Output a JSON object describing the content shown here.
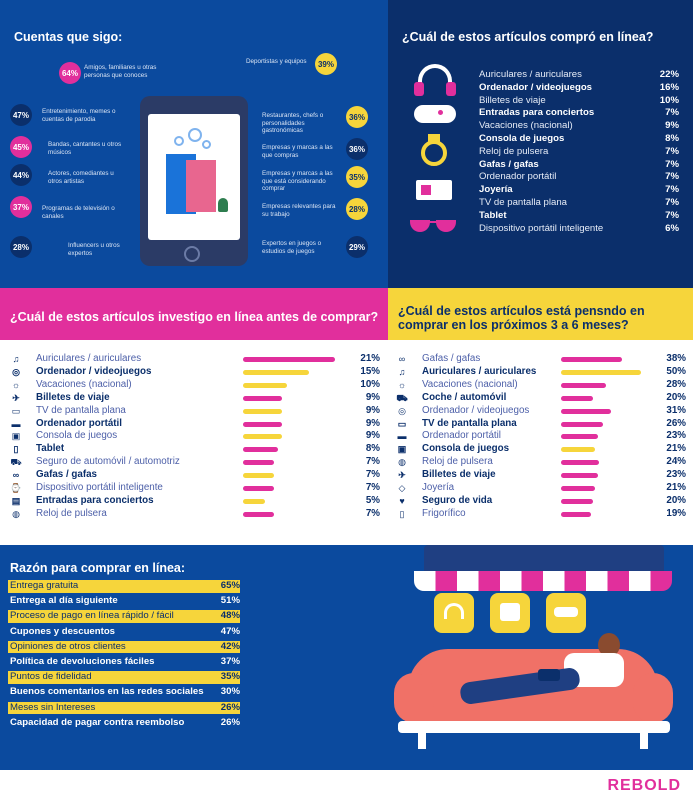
{
  "follow": {
    "title": "Cuentas que sigo:",
    "items": [
      {
        "pct": "64%",
        "label": "Amigos, familiares u otras personas que conoces"
      },
      {
        "pct": "39%",
        "label": "Deportistas y equipos"
      },
      {
        "pct": "47%",
        "label": "Entretenimiento, memes o cuentas de parodia"
      },
      {
        "pct": "36%",
        "label": "Restaurantes, chefs o personalidades gastronómicas"
      },
      {
        "pct": "45%",
        "label": "Bandas, cantantes u otros músicos"
      },
      {
        "pct": "36%",
        "label": "Empresas y marcas a las que compras"
      },
      {
        "pct": "44%",
        "label": "Actores, comediantes u otros artistas"
      },
      {
        "pct": "35%",
        "label": "Empresas y marcas a las que está considerando comprar"
      },
      {
        "pct": "37%",
        "label": "Programas de televisión o canales"
      },
      {
        "pct": "28%",
        "label": "Empresas relevantes para su trabajo"
      },
      {
        "pct": "28%",
        "label": "Influencers u otros expertos"
      },
      {
        "pct": "29%",
        "label": "Expertos en juegos o estudios de juegos"
      }
    ]
  },
  "bought": {
    "title": "¿Cuál de estos artículos compró en línea?",
    "items": [
      {
        "label": "Auriculares / auriculares",
        "pct": "22%",
        "bold": false
      },
      {
        "label": "Ordenador / videojuegos",
        "pct": "16%",
        "bold": true
      },
      {
        "label": "Billetes de viaje",
        "pct": "10%",
        "bold": false
      },
      {
        "label": "Entradas para conciertos",
        "pct": "7%",
        "bold": true
      },
      {
        "label": "Vacaciones (nacional)",
        "pct": "9%",
        "bold": false
      },
      {
        "label": "Consola de juegos",
        "pct": "8%",
        "bold": true
      },
      {
        "label": "Reloj de pulsera",
        "pct": "7%",
        "bold": false
      },
      {
        "label": "Gafas / gafas",
        "pct": "7%",
        "bold": true
      },
      {
        "label": "Ordenador portátil",
        "pct": "7%",
        "bold": false
      },
      {
        "label": "Joyería",
        "pct": "7%",
        "bold": true
      },
      {
        "label": "TV de pantalla plana",
        "pct": "7%",
        "bold": false
      },
      {
        "label": "Tablet",
        "pct": "7%",
        "bold": true
      },
      {
        "label": "Dispositivo portátil inteligente",
        "pct": "6%",
        "bold": false
      }
    ]
  },
  "research": {
    "title": "¿Cuál de estos artículos investigo en línea antes de comprar?",
    "items": [
      {
        "label": "Auriculares / auriculares",
        "pct": "21%",
        "value": 21,
        "bold": false,
        "color": "#e12f9c",
        "icon": "headphones-icon",
        "glyph": "♫"
      },
      {
        "label": "Ordenador / videojuegos",
        "pct": "15%",
        "value": 15,
        "bold": true,
        "color": "#f6d53b",
        "icon": "gamepad-icon",
        "glyph": "◎"
      },
      {
        "label": "Vacaciones (nacional)",
        "pct": "10%",
        "value": 10,
        "bold": false,
        "color": "#f6d53b",
        "icon": "sun-icon",
        "glyph": "☼"
      },
      {
        "label": "Billetes de viaje",
        "pct": "9%",
        "value": 9,
        "bold": true,
        "color": "#e12f9c",
        "icon": "plane-icon",
        "glyph": "✈"
      },
      {
        "label": "TV de pantalla plana",
        "pct": "9%",
        "value": 9,
        "bold": false,
        "color": "#f6d53b",
        "icon": "tv-icon",
        "glyph": "▭"
      },
      {
        "label": "Ordenador portátil",
        "pct": "9%",
        "value": 9,
        "bold": true,
        "color": "#e12f9c",
        "icon": "laptop-icon",
        "glyph": "▬"
      },
      {
        "label": "Consola de juegos",
        "pct": "9%",
        "value": 9,
        "bold": false,
        "color": "#f6d53b",
        "icon": "console-icon",
        "glyph": "▣"
      },
      {
        "label": "Tablet",
        "pct": "8%",
        "value": 8,
        "bold": true,
        "color": "#e12f9c",
        "icon": "tablet-icon",
        "glyph": "▯"
      },
      {
        "label": "Seguro de automóvil / automotriz",
        "pct": "7%",
        "value": 7,
        "bold": false,
        "color": "#e12f9c",
        "icon": "car-icon",
        "glyph": "⛟"
      },
      {
        "label": "Gafas / gafas",
        "pct": "7%",
        "value": 7,
        "bold": true,
        "color": "#f6d53b",
        "icon": "glasses-icon",
        "glyph": "∞"
      },
      {
        "label": "Dispositivo portátil inteligente",
        "pct": "7%",
        "value": 7,
        "bold": false,
        "color": "#e12f9c",
        "icon": "smartwatch-icon",
        "glyph": "⌚"
      },
      {
        "label": "Entradas para conciertos",
        "pct": "5%",
        "value": 5,
        "bold": true,
        "color": "#f6d53b",
        "icon": "ticket-icon",
        "glyph": "▤"
      },
      {
        "label": "Reloj de pulsera",
        "pct": "7%",
        "value": 7,
        "bold": false,
        "color": "#e12f9c",
        "icon": "watch-icon",
        "glyph": "◍"
      }
    ]
  },
  "future": {
    "title": "¿Cuál de estos artículos está pensndo en comprar en los próximos 3 a 6 meses?",
    "items": [
      {
        "label": "Gafas / gafas",
        "pct": "38%",
        "value": 38,
        "bold": false,
        "color": "#e12f9c",
        "icon": "glasses-icon",
        "glyph": "∞"
      },
      {
        "label": "Auriculares / auriculares",
        "pct": "50%",
        "value": 50,
        "bold": true,
        "color": "#f6d53b",
        "icon": "headphones-icon",
        "glyph": "♫"
      },
      {
        "label": "Vacaciones (nacional)",
        "pct": "28%",
        "value": 28,
        "bold": false,
        "color": "#e12f9c",
        "icon": "sun-icon",
        "glyph": "☼"
      },
      {
        "label": "Coche / automóvil",
        "pct": "20%",
        "value": 20,
        "bold": true,
        "color": "#e12f9c",
        "icon": "car-icon",
        "glyph": "⛟"
      },
      {
        "label": "Ordenador / videojuegos",
        "pct": "31%",
        "value": 31,
        "bold": false,
        "color": "#e12f9c",
        "icon": "gamepad-icon",
        "glyph": "◎"
      },
      {
        "label": "TV de pantalla plana",
        "pct": "26%",
        "value": 26,
        "bold": true,
        "color": "#e12f9c",
        "icon": "tv-icon",
        "glyph": "▭"
      },
      {
        "label": "Ordenador portátil",
        "pct": "23%",
        "value": 23,
        "bold": false,
        "color": "#e12f9c",
        "icon": "laptop-icon",
        "glyph": "▬"
      },
      {
        "label": "Consola de juegos",
        "pct": "21%",
        "value": 21,
        "bold": true,
        "color": "#f6d53b",
        "icon": "console-icon",
        "glyph": "▣"
      },
      {
        "label": "Reloj de pulsera",
        "pct": "24%",
        "value": 24,
        "bold": false,
        "color": "#e12f9c",
        "icon": "watch-icon",
        "glyph": "◍"
      },
      {
        "label": "Billetes de viaje",
        "pct": "23%",
        "value": 23,
        "bold": true,
        "color": "#e12f9c",
        "icon": "plane-icon",
        "glyph": "✈"
      },
      {
        "label": "Joyería",
        "pct": "21%",
        "value": 21,
        "bold": false,
        "color": "#e12f9c",
        "icon": "jewel-icon",
        "glyph": "◇"
      },
      {
        "label": "Seguro de vida",
        "pct": "20%",
        "value": 20,
        "bold": true,
        "color": "#e12f9c",
        "icon": "heart-icon",
        "glyph": "♥"
      },
      {
        "label": "Frigorífico",
        "pct": "19%",
        "value": 19,
        "bold": false,
        "color": "#e12f9c",
        "icon": "fridge-icon",
        "glyph": "▯"
      }
    ]
  },
  "reasons": {
    "title": "Razón para comprar en línea:",
    "items": [
      {
        "label": "Entrega gratuita",
        "pct": "65%",
        "style": "y"
      },
      {
        "label": "Entrega al día siguiente",
        "pct": "51%",
        "style": "n"
      },
      {
        "label": "Proceso de pago en línea rápido / fácil",
        "pct": "48%",
        "style": "y"
      },
      {
        "label": "Cupones y descuentos",
        "pct": "47%",
        "style": "n"
      },
      {
        "label": "Opiniones de otros clientes",
        "pct": "42%",
        "style": "y"
      },
      {
        "label": "Política de devoluciones fáciles",
        "pct": "37%",
        "style": "n"
      },
      {
        "label": "Puntos de fidelidad",
        "pct": "35%",
        "style": "y"
      },
      {
        "label": "Buenos comentarios en las redes sociales",
        "pct": "30%",
        "style": "n"
      },
      {
        "label": "Meses sin Intereses",
        "pct": "26%",
        "style": "y"
      },
      {
        "label": "Capacidad de pagar contra reembolso",
        "pct": "26%",
        "style": "n"
      }
    ]
  },
  "brand": {
    "logo": "REBOLD"
  },
  "colors": {
    "navy": "#0b2f6b",
    "blue": "#0b4a9e",
    "pink": "#e12f9c",
    "yellow": "#f6d53b"
  }
}
